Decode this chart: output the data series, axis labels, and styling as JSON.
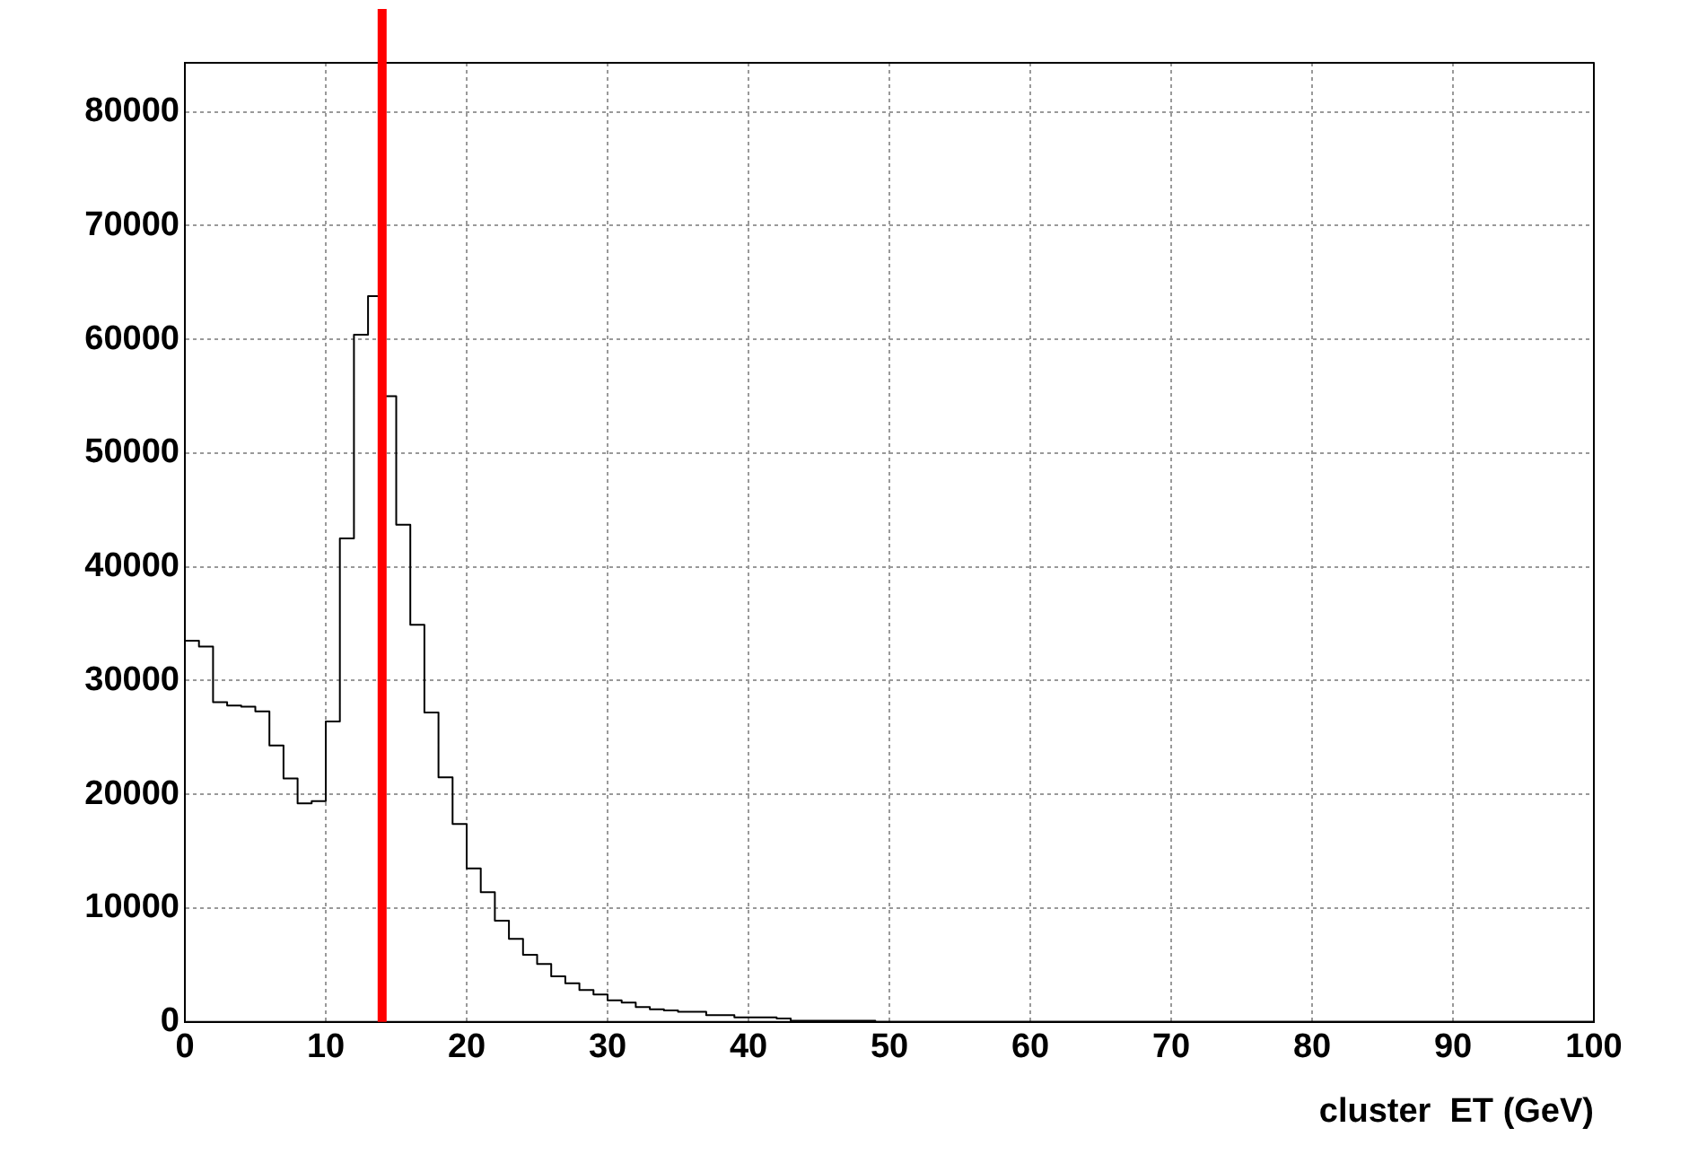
{
  "chart_data": {
    "type": "histogram",
    "xlabel": "cluster  ET (GeV)",
    "bins": [
      0,
      1,
      2,
      3,
      4,
      5,
      6,
      7,
      8,
      9,
      10,
      11,
      12,
      13,
      14,
      15,
      16,
      17,
      18,
      19,
      20,
      21,
      22,
      23,
      24,
      25,
      26,
      27,
      28,
      29,
      30,
      31,
      32,
      33,
      34,
      35,
      36,
      37,
      38,
      39,
      40,
      41,
      42,
      43,
      44,
      45,
      46,
      47,
      48,
      49,
      50,
      51,
      52,
      53,
      54,
      55,
      56,
      57,
      58,
      59,
      60,
      61,
      62,
      63,
      64,
      65,
      66,
      67,
      68,
      69,
      70,
      71,
      72,
      73,
      74,
      75,
      76,
      77,
      78,
      79,
      80,
      81,
      82,
      83,
      84,
      85,
      86,
      87,
      88,
      89,
      90,
      91,
      92,
      93,
      94,
      95,
      96,
      97,
      98,
      99,
      100
    ],
    "values": [
      33500,
      33000,
      28100,
      27800,
      27700,
      27300,
      24300,
      21400,
      19200,
      19400,
      26400,
      42500,
      60400,
      63800,
      55000,
      43700,
      34900,
      27200,
      21500,
      17400,
      13500,
      11400,
      8900,
      7300,
      5900,
      5100,
      4000,
      3400,
      2800,
      2400,
      1900,
      1700,
      1300,
      1100,
      1000,
      900,
      900,
      600,
      600,
      400,
      400,
      400,
      300,
      100,
      100,
      100,
      100,
      100,
      100,
      0,
      0,
      0,
      0,
      0,
      0,
      0,
      0,
      0,
      0,
      0,
      0,
      0,
      0,
      0,
      0,
      0,
      0,
      0,
      0,
      0,
      0,
      0,
      0,
      0,
      0,
      0,
      0,
      0,
      0,
      0,
      0,
      0,
      0,
      0,
      0,
      0,
      0,
      0,
      0,
      0,
      0,
      0,
      0,
      0,
      0,
      0,
      0,
      0,
      0,
      0
    ],
    "color": "#000000",
    "xlim": [
      0,
      100
    ],
    "xticks": [
      0,
      10,
      20,
      30,
      40,
      50,
      60,
      70,
      80,
      90,
      100
    ],
    "ylim": [
      0,
      84300
    ],
    "yticks": [
      0,
      10000,
      20000,
      30000,
      40000,
      50000,
      60000,
      70000,
      80000
    ],
    "grid": true,
    "ref_lines": [
      {
        "axis": "x",
        "value": 14,
        "color": "#ff0000"
      }
    ]
  }
}
